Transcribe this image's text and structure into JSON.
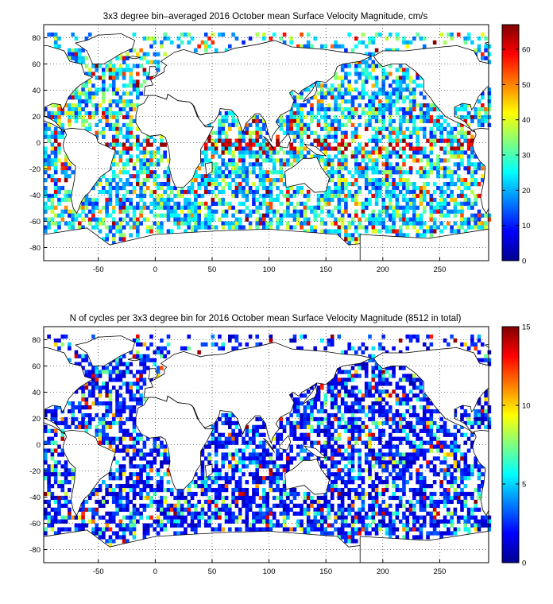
{
  "chart_data": [
    {
      "type": "heatmap",
      "title": "3x3 degree bin–averaged 2016 October mean Surface Velocity Magnitude, cm/s",
      "xlabel": "",
      "ylabel": "",
      "xlim": [
        -98,
        293
      ],
      "ylim": [
        -90,
        90
      ],
      "xticks": [
        -50,
        0,
        50,
        100,
        150,
        200,
        250
      ],
      "yticks": [
        -80,
        -60,
        -40,
        -20,
        0,
        20,
        40,
        60,
        80
      ],
      "grid": "dotted",
      "bin_size_deg": 3,
      "colorbar": {
        "min": 0,
        "max": 67,
        "ticks": [
          0,
          10,
          20,
          30,
          40,
          50,
          60
        ],
        "colormap": "jet",
        "placement": "right"
      }
    },
    {
      "type": "heatmap",
      "title": "N of cycles per 3x3 degree bin for 2016 October mean Surface Velocity Magnitude (8512 in total)",
      "xlabel": "",
      "ylabel": "",
      "xlim": [
        -98,
        293
      ],
      "ylim": [
        -90,
        90
      ],
      "xticks": [
        -50,
        0,
        50,
        100,
        150,
        200,
        250
      ],
      "yticks": [
        -80,
        -60,
        -40,
        -20,
        0,
        20,
        40,
        60,
        80
      ],
      "grid": "dotted",
      "bin_size_deg": 3,
      "total_cycles": 8512,
      "colorbar": {
        "min": 0,
        "max": 15,
        "ticks": [
          0,
          5,
          10,
          15
        ],
        "colormap": "jet",
        "placement": "right"
      }
    }
  ]
}
